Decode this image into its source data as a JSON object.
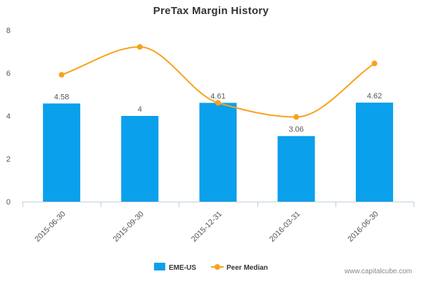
{
  "chart_data": {
    "type": "bar",
    "title": "PreTax Margin History",
    "categories": [
      "2015-06-30",
      "2015-09-30",
      "2015-12-31",
      "2016-03-31",
      "2016-06-30"
    ],
    "series": [
      {
        "name": "EME-US",
        "type": "bar",
        "color": "#0aa0ec",
        "values": [
          4.58,
          4,
          4.61,
          3.06,
          4.62
        ],
        "labels": [
          "4.58",
          "4",
          "4.61",
          "3.06",
          "4.62"
        ]
      },
      {
        "name": "Peer Median",
        "type": "line",
        "color": "#f7a21b",
        "values": [
          5.92,
          7.22,
          4.61,
          3.95,
          6.45
        ]
      }
    ],
    "yticks": [
      0,
      2,
      4,
      6,
      8
    ],
    "ylim": [
      0,
      8
    ],
    "grid": false,
    "legend": "bottom-center",
    "xlabel": "",
    "ylabel": ""
  },
  "watermark": "www.capitalcube.com"
}
